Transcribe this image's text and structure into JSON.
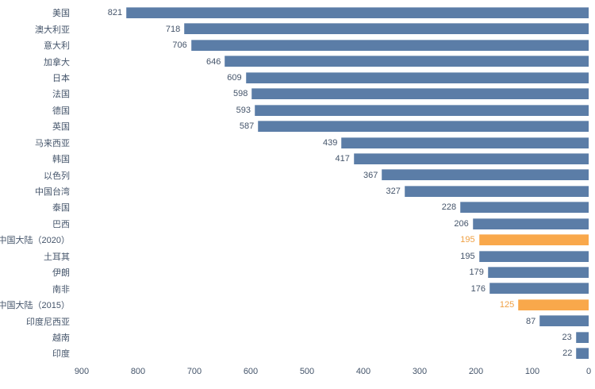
{
  "chart_data": {
    "type": "bar",
    "orientation": "horizontal",
    "axis_reversed": true,
    "categories": [
      "美国",
      "澳大利亚",
      "意大利",
      "加拿大",
      "日本",
      "法国",
      "德国",
      "英国",
      "马来西亚",
      "韩国",
      "以色列",
      "中国台湾",
      "泰国",
      "巴西",
      "中国大陆（2020）",
      "土耳其",
      "伊朗",
      "南非",
      "中国大陆（2015）",
      "印度尼西亚",
      "越南",
      "印度"
    ],
    "values": [
      821,
      718,
      706,
      646,
      609,
      598,
      593,
      587,
      439,
      417,
      367,
      327,
      228,
      206,
      195,
      195,
      179,
      176,
      125,
      87,
      23,
      22
    ],
    "highlight_indices": [
      14,
      18
    ],
    "highlighted_categories": [
      "中国大陆（2020）",
      "中国大陆（2015）"
    ],
    "data_labels_shown": true,
    "x_axis_ticks": [
      "900",
      "800",
      "700",
      "600",
      "500",
      "400",
      "300",
      "200",
      "100",
      "0"
    ],
    "xlim": [
      0,
      900
    ],
    "grid": false,
    "legend": "none",
    "colors": {
      "bar": "#5B7DA7",
      "highlight_bar": "#F9A84B",
      "text": "#44546A",
      "highlight_text": "#EFA044",
      "background": "#FFFFFF"
    }
  }
}
